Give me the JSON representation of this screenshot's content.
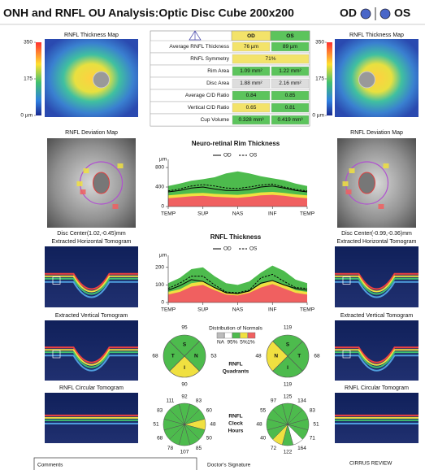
{
  "header": {
    "title": "ONH and RNFL OU Analysis:Optic Disc Cube 200x200",
    "od": "OD",
    "os": "OS"
  },
  "od": {
    "thickness_map": "RNFL Thickness Map",
    "colorbar_ticks": [
      350,
      175,
      {
        "value": 0,
        "label": "0 µm"
      }
    ],
    "deviation_map": "RNFL Deviation Map",
    "disc_center": "Disc Center(1.02,-0.45)mm",
    "horizontal_tomogram": "Extracted Horizontal Tomogram",
    "vertical_tomogram": "Extracted Vertical Tomogram",
    "circular_tomogram": "RNFL Circular Tomogram"
  },
  "os": {
    "thickness_map": "RNFL Thickness Map",
    "colorbar_ticks": [
      350,
      175,
      {
        "value": 0,
        "label": "0 µm"
      }
    ],
    "deviation_map": "RNFL Deviation Map",
    "disc_center": "Disc Center(-0.99,-0.36)mm",
    "horizontal_tomogram": "Extracted Horizontal Tomogram",
    "vertical_tomogram": "Extracted Vertical Tomogram",
    "circular_tomogram": "RNFL Circular Tomogram"
  },
  "table": {
    "columns": [
      "OD",
      "OS"
    ],
    "column_colors": [
      "#f3e36a",
      "#5cc45c"
    ],
    "rows": [
      {
        "label": "Average RNFL Thickness",
        "cells": [
          "76 µm",
          "89 µm"
        ],
        "colors": [
          "#f3e36a",
          "#5cc45c"
        ]
      },
      {
        "label": "RNFL Symmetry",
        "cells": [
          "71%"
        ],
        "colors": [
          "#f3e36a"
        ]
      },
      {
        "label": "Rim Area",
        "cells": [
          "1.09 mm²",
          "1.22 mm²"
        ],
        "colors": [
          "#5cc45c",
          "#5cc45c"
        ]
      },
      {
        "label": "Disc Area",
        "cells": [
          "1.88 mm²",
          "2.16 mm²"
        ],
        "colors": [
          "#dddddd",
          "#dddddd"
        ]
      },
      {
        "label": "Average C/D Ratio",
        "cells": [
          "0.84",
          "0.85"
        ],
        "colors": [
          "#5cc45c",
          "#5cc45c"
        ]
      },
      {
        "label": "Vertical C/D Ratio",
        "cells": [
          "0.65",
          "0.81"
        ],
        "colors": [
          "#f3e36a",
          "#5cc45c"
        ]
      },
      {
        "label": "Cup Volume",
        "cells": [
          "0.328 mm³",
          "0.419 mm³"
        ],
        "colors": [
          "#5cc45c",
          "#5cc45c"
        ]
      }
    ]
  },
  "rim_chart": {
    "type": "line",
    "title": "Neuro-retinal Rim Thickness",
    "y_unit": "µm",
    "ylim": [
      0,
      900
    ],
    "yticks": [
      0,
      400,
      800
    ],
    "categories": [
      "TEMP",
      "SUP",
      "NAS",
      "INF",
      "TEMP"
    ],
    "bands": [
      {
        "color": "#4dbb4d",
        "values": [
          420,
          470,
          530,
          560,
          600,
          680,
          720,
          680,
          620,
          580,
          540,
          470,
          420
        ]
      },
      {
        "color": "#f0e040",
        "values": [
          230,
          250,
          270,
          280,
          260,
          250,
          240,
          260,
          290,
          300,
          280,
          250,
          230
        ]
      },
      {
        "color": "#f06060",
        "values": [
          170,
          190,
          210,
          220,
          200,
          190,
          180,
          200,
          230,
          240,
          220,
          190,
          170
        ]
      }
    ],
    "series": [
      {
        "name": "OD",
        "color": "#000000",
        "dash": false,
        "values": [
          300,
          330,
          380,
          400,
          360,
          330,
          330,
          350,
          400,
          420,
          380,
          330,
          300
        ]
      },
      {
        "name": "OS",
        "color": "#000000",
        "dash": true,
        "values": [
          320,
          360,
          420,
          450,
          420,
          380,
          370,
          400,
          440,
          460,
          400,
          350,
          320
        ]
      }
    ]
  },
  "rnfl_chart": {
    "type": "line",
    "title": "RNFL Thickness",
    "y_unit": "µm",
    "ylim": [
      0,
      250
    ],
    "yticks": [
      0,
      100,
      200
    ],
    "categories": [
      "TEMP",
      "SUP",
      "NAS",
      "INF",
      "TEMP"
    ],
    "bands": [
      {
        "color": "#4dbb4d",
        "values": [
          110,
          140,
          190,
          200,
          150,
          110,
          100,
          120,
          170,
          210,
          180,
          130,
          110
        ]
      },
      {
        "color": "#f0e040",
        "values": [
          60,
          75,
          110,
          120,
          85,
          55,
          50,
          65,
          105,
          125,
          100,
          70,
          60
        ]
      },
      {
        "color": "#f06060",
        "values": [
          45,
          60,
          90,
          100,
          70,
          45,
          40,
          55,
          85,
          105,
          80,
          55,
          45
        ]
      }
    ],
    "series": [
      {
        "name": "OD",
        "color": "#000000",
        "dash": false,
        "values": [
          70,
          95,
          130,
          120,
          85,
          55,
          50,
          65,
          110,
          125,
          100,
          80,
          70
        ]
      },
      {
        "name": "OS",
        "color": "#000000",
        "dash": true,
        "values": [
          80,
          110,
          150,
          150,
          100,
          60,
          55,
          70,
          140,
          160,
          120,
          85,
          80
        ]
      }
    ]
  },
  "legend": {
    "title": "Distribution of Normals",
    "colors": [
      "#bbbbbb",
      "#ffffff",
      "#4dbb4d",
      "#f0e040",
      "#f06060"
    ],
    "labels": [
      "NA",
      "95%",
      "5%",
      "1%"
    ]
  },
  "quadrants": {
    "title": [
      "RNFL",
      "Quadrants"
    ],
    "od": [
      {
        "label": "S",
        "value": 95,
        "color": "#4dbb4d"
      },
      {
        "label": "N",
        "value": 53,
        "color": "#4dbb4d"
      },
      {
        "label": "I",
        "value": 90,
        "color": "#f0e040"
      },
      {
        "label": "T",
        "value": 68,
        "color": "#4dbb4d"
      }
    ],
    "os": [
      {
        "label": "S",
        "value": 119,
        "color": "#4dbb4d"
      },
      {
        "label": "T",
        "value": 68,
        "color": "#4dbb4d"
      },
      {
        "label": "I",
        "value": 119,
        "color": "#4dbb4d"
      },
      {
        "label": "N",
        "value": 48,
        "color": "#f0e040"
      }
    ]
  },
  "clock_hours": {
    "title": [
      "RNFL",
      "Clock",
      "Hours"
    ],
    "od": {
      "values": [
        92,
        83,
        60,
        48,
        50,
        85,
        107,
        78,
        68,
        51,
        83,
        111
      ],
      "colors": [
        "#4dbb4d",
        "#4dbb4d",
        "#4dbb4d",
        "#f0e040",
        "#4dbb4d",
        "#4dbb4d",
        "#4dbb4d",
        "#4dbb4d",
        "#4dbb4d",
        "#4dbb4d",
        "#4dbb4d",
        "#4dbb4d"
      ]
    },
    "os": {
      "values": [
        125,
        134,
        83,
        51,
        71,
        164,
        122,
        72,
        40,
        48,
        55,
        97
      ],
      "colors": [
        "#4dbb4d",
        "#4dbb4d",
        "#4dbb4d",
        "#4dbb4d",
        "#4dbb4d",
        "#ffffff",
        "#4dbb4d",
        "#f0e040",
        "#4dbb4d",
        "#4dbb4d",
        "#4dbb4d",
        "#4dbb4d"
      ]
    }
  },
  "footer": {
    "comments": "Comments",
    "signature": "Doctor's Signature",
    "product": "CIRRUS REVIEW"
  }
}
